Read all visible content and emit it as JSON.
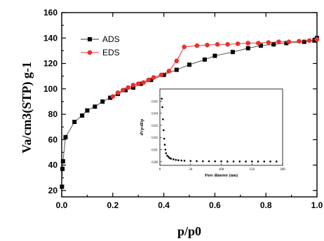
{
  "chart_data": [
    {
      "type": "line",
      "xlabel": "p/p0",
      "ylabel": "Va/cm3(STP) g-1",
      "xlim": [
        0,
        1.0
      ],
      "ylim": [
        15,
        160
      ],
      "xticks": [
        "0.0",
        "0.2",
        "0.4",
        "0.6",
        "0.8",
        "1.0"
      ],
      "yticks": [
        "20",
        "40",
        "60",
        "80",
        "100",
        "120",
        "140",
        "160"
      ],
      "legend_position": "top-left",
      "series": [
        {
          "name": "ADS",
          "color": "#000000",
          "marker": "square",
          "x": [
            0.001,
            0.003,
            0.005,
            0.015,
            0.05,
            0.08,
            0.1,
            0.13,
            0.16,
            0.19,
            0.22,
            0.25,
            0.28,
            0.31,
            0.35,
            0.4,
            0.45,
            0.5,
            0.56,
            0.6,
            0.67,
            0.73,
            0.78,
            0.83,
            0.88,
            0.95,
            0.99,
            1.0
          ],
          "y": [
            23,
            37,
            43,
            62,
            74,
            79,
            83,
            86,
            90,
            93,
            96,
            99,
            101,
            104,
            107,
            111,
            115,
            119,
            123,
            126,
            129,
            132,
            134,
            135,
            136,
            137,
            138,
            140
          ]
        },
        {
          "name": "EDS",
          "color": "#e8312f",
          "marker": "circle",
          "x": [
            0.2,
            0.22,
            0.24,
            0.26,
            0.28,
            0.3,
            0.32,
            0.34,
            0.36,
            0.39,
            0.42,
            0.45,
            0.48,
            0.53,
            0.57,
            0.61,
            0.65,
            0.69,
            0.73,
            0.77,
            0.81,
            0.85,
            0.89,
            0.93,
            0.97,
            1.0
          ],
          "y": [
            94,
            97,
            99,
            101,
            103,
            104,
            105,
            107,
            109,
            111,
            114,
            122,
            133,
            134,
            134.5,
            135,
            135,
            135.5,
            136,
            136,
            136.5,
            137,
            137,
            137.5,
            138,
            139
          ]
        }
      ]
    },
    {
      "type": "scatter",
      "xlabel": "Pore dimeter (nm)",
      "ylabel": "dVp/dDp",
      "xlim": [
        0,
        200
      ],
      "ylim": [
        -0.003,
        0.06
      ],
      "xticks": [
        "0",
        "50",
        "100",
        "150",
        "200"
      ],
      "yticks": [
        "0.00",
        "0.01",
        "0.02",
        "0.03",
        "0.04",
        "0.05"
      ],
      "series": [
        {
          "color": "#000000",
          "x": [
            3,
            4,
            5,
            6,
            7,
            8,
            9,
            10,
            12,
            14,
            16,
            18,
            22,
            26,
            30,
            35,
            40,
            50,
            60,
            70,
            80,
            90,
            100,
            110,
            120,
            130,
            140,
            150,
            160,
            170,
            180,
            190
          ],
          "y": [
            0.052,
            0.045,
            0.035,
            0.026,
            0.019,
            0.014,
            0.01,
            0.007,
            0.005,
            0.004,
            0.003,
            0.0025,
            0.002,
            0.0015,
            0.0012,
            0.001,
            0.0008,
            0.0006,
            0.0005,
            0.0004,
            0.0004,
            0.0003,
            0.0003,
            0.0002,
            0.0002,
            0.0002,
            0.0002,
            0.0002,
            0.0002,
            0.0002,
            0.0002,
            0.0002
          ]
        }
      ]
    }
  ]
}
